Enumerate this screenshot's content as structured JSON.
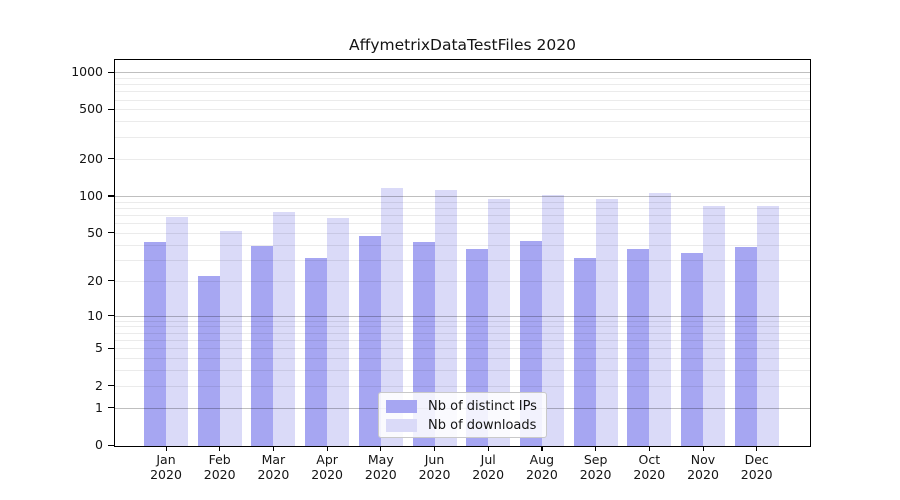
{
  "title": "AffymetrixDataTestFiles 2020",
  "chart_data": {
    "type": "bar",
    "title": "AffymetrixDataTestFiles 2020",
    "x_categories": [
      "Jan",
      "Feb",
      "Mar",
      "Apr",
      "May",
      "Jun",
      "Jul",
      "Aug",
      "Sep",
      "Oct",
      "Nov",
      "Dec"
    ],
    "x_year": "2020",
    "series": [
      {
        "name": "Nb of distinct IPs",
        "color": "#a6a6f2",
        "values": [
          42,
          22,
          39,
          31,
          47,
          42,
          37,
          43,
          31,
          37,
          34,
          38
        ]
      },
      {
        "name": "Nb of downloads",
        "color": "#dadaf8",
        "values": [
          67,
          52,
          74,
          66,
          116,
          112,
          95,
          101,
          94,
          106,
          82,
          82
        ]
      }
    ],
    "y_axis": {
      "scale": "log1p",
      "tick_values": [
        0,
        1,
        2,
        5,
        10,
        20,
        50,
        100,
        200,
        500,
        1000
      ],
      "tick_labels": [
        "0",
        "1",
        "2",
        "5",
        "10",
        "20",
        "50",
        "100",
        "200",
        "500",
        "1000"
      ],
      "min": 0,
      "max": 1250,
      "grid": "on"
    },
    "grid": {
      "major": [
        1,
        10,
        100,
        1000
      ],
      "minor": [
        2,
        3,
        4,
        5,
        6,
        7,
        8,
        9,
        20,
        30,
        40,
        50,
        60,
        70,
        80,
        90,
        200,
        300,
        400,
        500,
        600,
        700,
        800,
        900
      ]
    },
    "legend": {
      "position": "lower center",
      "entries": [
        "Nb of distinct IPs",
        "Nb of downloads"
      ]
    }
  },
  "colors": {
    "bar_ips": "#a6a6f2",
    "bar_downloads": "#dadaf8",
    "spine": "#000000",
    "grid_major": "#c0c0c0",
    "grid_minor": "#ebebeb",
    "legend_border": "#c9c9c9"
  }
}
